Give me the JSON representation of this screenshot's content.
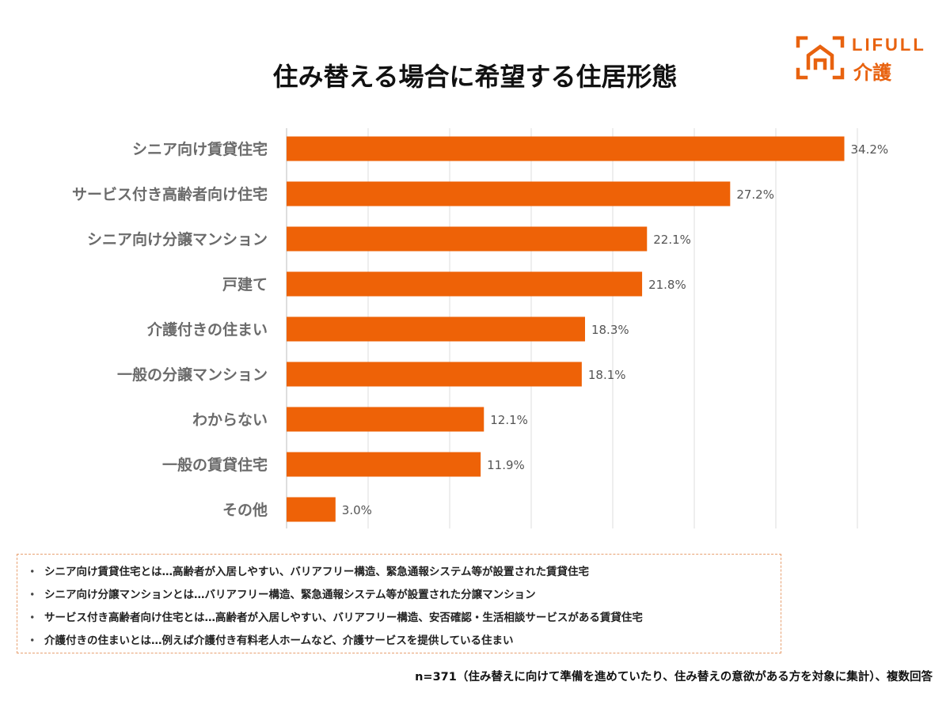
{
  "title": "住み替える場合に希望する住居形態",
  "logo": {
    "line1": "LIFULL",
    "line2": "介護",
    "icon": "house-frame-icon",
    "color": "#e8620f"
  },
  "chart_data": {
    "type": "bar",
    "orientation": "horizontal",
    "title": "住み替える場合に希望する住居形態",
    "xlabel": "",
    "ylabel": "",
    "xlim": [
      0,
      35
    ],
    "grid": true,
    "bar_color": "#ee6207",
    "categories": [
      "シニア向け賃貸住宅",
      "サービス付き高齢者向け住宅",
      "シニア向け分譲マンション",
      "戸建て",
      "介護付きの住まい",
      "一般の分譲マンション",
      "わからない",
      "一般の賃貸住宅",
      "その他"
    ],
    "values": [
      34.2,
      27.2,
      22.1,
      21.8,
      18.3,
      18.1,
      12.1,
      11.9,
      3.0
    ],
    "value_labels": [
      "34.2%",
      "27.2%",
      "22.1%",
      "21.8%",
      "18.3%",
      "18.1%",
      "12.1%",
      "11.9%",
      "3.0%"
    ]
  },
  "notes": {
    "bullet": "・",
    "items": [
      "シニア向け賃貸住宅とは…高齢者が入居しやすい、バリアフリー構造、緊急通報システム等が設置された賃貸住宅",
      "シニア向け分譲マンションとは…バリアフリー構造、緊急通報システム等が設置された分譲マンション",
      "サービス付き高齢者向け住宅とは…高齢者が入居しやすい、バリアフリー構造、安否確認・生活相談サービスがある賃貸住宅",
      "介護付きの住まいとは…例えば介護付き有料老人ホームなど、介護サービスを提供している住まい"
    ]
  },
  "footer": "n=371（住み替えに向けて準備を進めていたり、住み替えの意欲がある方を対象に集計）、複数回答"
}
